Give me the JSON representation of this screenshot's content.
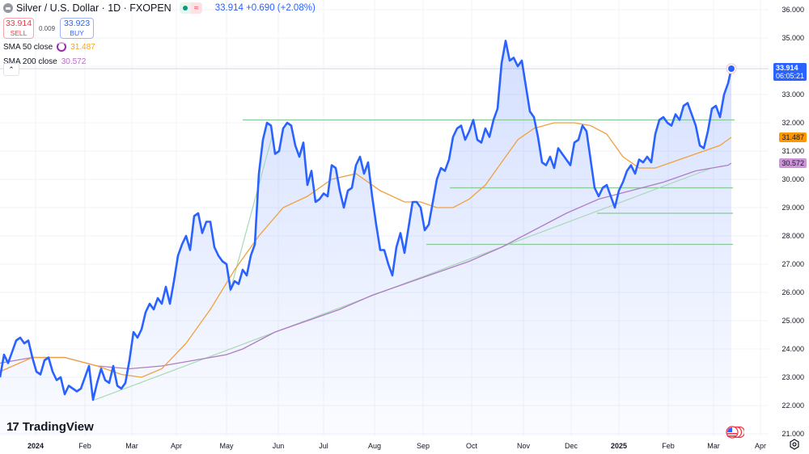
{
  "header": {
    "symbol_title": "Silver / U.S. Dollar · 1D · FXOPEN",
    "market_status": "open",
    "delay_symbol": "≈",
    "last_price": "33.914",
    "change": "+0.690",
    "change_pct": "(+2.08%)"
  },
  "trade": {
    "sell_price": "33.914",
    "sell_label": "SELL",
    "spread": "0.009",
    "buy_price": "33.923",
    "buy_label": "BUY"
  },
  "indicators": [
    {
      "name": "SMA 50 close",
      "value": "31.487",
      "color": "#f5a623"
    },
    {
      "name": "SMA 200 close",
      "value": "30.572",
      "color": "#ba68c8"
    }
  ],
  "collapse_symbol": "^",
  "price_axis": {
    "ticks": [
      "36.000",
      "35.000",
      "33.000",
      "32.000",
      "31.000",
      "30.000",
      "29.000",
      "28.000",
      "27.000",
      "26.000",
      "25.000",
      "24.000",
      "23.000",
      "22.000",
      "21.000"
    ],
    "last_price_tag": {
      "price": "33.914",
      "countdown": "06:05:21",
      "color": "#2962ff"
    },
    "sma50_tag": {
      "value": "31.487",
      "color": "#ff9800"
    },
    "sma200_tag": {
      "value": "30.572",
      "color": "#ce93d8"
    }
  },
  "time_axis": {
    "labels": [
      {
        "text": "2024",
        "bold": true
      },
      {
        "text": "Feb",
        "bold": false
      },
      {
        "text": "Mar",
        "bold": false
      },
      {
        "text": "Apr",
        "bold": false
      },
      {
        "text": "May",
        "bold": false
      },
      {
        "text": "Jun",
        "bold": false
      },
      {
        "text": "Jul",
        "bold": false
      },
      {
        "text": "Aug",
        "bold": false
      },
      {
        "text": "Sep",
        "bold": false
      },
      {
        "text": "Oct",
        "bold": false
      },
      {
        "text": "Nov",
        "bold": false
      },
      {
        "text": "Dec",
        "bold": false
      },
      {
        "text": "2025",
        "bold": true
      },
      {
        "text": "Feb",
        "bold": false
      },
      {
        "text": "Mar",
        "bold": false
      },
      {
        "text": "Apr",
        "bold": false
      }
    ]
  },
  "branding": {
    "logo_mark": "17",
    "logo_text": "TradingView"
  },
  "colors": {
    "price_line": "#2962ff",
    "area_fill": "#2962ff",
    "sma50": "#f0a040",
    "sma200": "#b07cc6",
    "trendlines": "#8bc89a",
    "grid": "#f0f3fa"
  },
  "chart_data": {
    "type": "area",
    "title": "Silver / U.S. Dollar · 1D · FXOPEN",
    "xlabel": "",
    "ylabel": "",
    "ylim": [
      21,
      36
    ],
    "grid": true,
    "legend_position": "top-left",
    "x": [
      "2024-01",
      "2024-02",
      "2024-03",
      "2024-04",
      "2024-05",
      "2024-06",
      "2024-07",
      "2024-08",
      "2024-09",
      "2024-10",
      "2024-11",
      "2024-12",
      "2025-01",
      "2025-02",
      "2025-03"
    ],
    "series": [
      {
        "name": "Silver / U.S. Dollar (close)",
        "points": [
          [
            0,
            23.0
          ],
          [
            5,
            23.8
          ],
          [
            10,
            23.5
          ],
          [
            15,
            23.9
          ],
          [
            20,
            24.3
          ],
          [
            25,
            24.4
          ],
          [
            30,
            24.2
          ],
          [
            35,
            24.3
          ],
          [
            40,
            23.7
          ],
          [
            45,
            23.2
          ],
          [
            50,
            23.1
          ],
          [
            55,
            23.6
          ],
          [
            60,
            23.7
          ],
          [
            65,
            23.2
          ],
          [
            70,
            22.9
          ],
          [
            75,
            23.0
          ],
          [
            80,
            22.4
          ],
          [
            85,
            22.7
          ],
          [
            90,
            22.6
          ],
          [
            95,
            22.5
          ],
          [
            100,
            22.6
          ],
          [
            105,
            23.0
          ],
          [
            110,
            23.4
          ],
          [
            115,
            22.2
          ],
          [
            120,
            22.8
          ],
          [
            125,
            23.3
          ],
          [
            130,
            22.9
          ],
          [
            135,
            22.8
          ],
          [
            140,
            23.4
          ],
          [
            145,
            22.7
          ],
          [
            150,
            22.6
          ],
          [
            155,
            22.8
          ],
          [
            160,
            23.6
          ],
          [
            165,
            24.6
          ],
          [
            170,
            24.4
          ],
          [
            175,
            24.7
          ],
          [
            180,
            25.3
          ],
          [
            185,
            25.6
          ],
          [
            190,
            25.4
          ],
          [
            195,
            25.8
          ],
          [
            200,
            25.6
          ],
          [
            205,
            26.2
          ],
          [
            210,
            25.6
          ],
          [
            215,
            26.4
          ],
          [
            220,
            27.3
          ],
          [
            225,
            27.7
          ],
          [
            230,
            28.0
          ],
          [
            235,
            27.5
          ],
          [
            240,
            28.7
          ],
          [
            245,
            28.8
          ],
          [
            250,
            28.1
          ],
          [
            255,
            28.5
          ],
          [
            260,
            28.5
          ],
          [
            265,
            27.6
          ],
          [
            270,
            27.3
          ],
          [
            275,
            27.1
          ],
          [
            280,
            27.0
          ],
          [
            285,
            26.1
          ],
          [
            290,
            26.4
          ],
          [
            295,
            26.3
          ],
          [
            300,
            26.8
          ],
          [
            305,
            26.6
          ],
          [
            310,
            27.3
          ],
          [
            315,
            27.7
          ],
          [
            320,
            30.2
          ],
          [
            325,
            31.4
          ],
          [
            330,
            32.0
          ],
          [
            335,
            31.9
          ],
          [
            340,
            30.9
          ],
          [
            345,
            31.0
          ],
          [
            350,
            31.8
          ],
          [
            355,
            32.0
          ],
          [
            360,
            31.9
          ],
          [
            365,
            31.2
          ],
          [
            370,
            30.8
          ],
          [
            375,
            31.3
          ],
          [
            380,
            29.8
          ],
          [
            385,
            30.3
          ],
          [
            390,
            29.2
          ],
          [
            395,
            29.3
          ],
          [
            400,
            29.5
          ],
          [
            405,
            29.4
          ],
          [
            410,
            30.5
          ],
          [
            415,
            30.4
          ],
          [
            420,
            29.6
          ],
          [
            425,
            29.0
          ],
          [
            430,
            29.6
          ],
          [
            435,
            29.7
          ],
          [
            440,
            30.5
          ],
          [
            445,
            30.8
          ],
          [
            450,
            30.2
          ],
          [
            455,
            30.6
          ],
          [
            460,
            29.4
          ],
          [
            465,
            28.4
          ],
          [
            470,
            27.5
          ],
          [
            475,
            27.5
          ],
          [
            480,
            27.0
          ],
          [
            485,
            26.6
          ],
          [
            490,
            27.6
          ],
          [
            495,
            28.1
          ],
          [
            500,
            27.4
          ],
          [
            505,
            28.3
          ],
          [
            510,
            29.2
          ],
          [
            515,
            29.2
          ],
          [
            520,
            29.0
          ],
          [
            525,
            28.2
          ],
          [
            530,
            28.4
          ],
          [
            535,
            29.2
          ],
          [
            540,
            30.0
          ],
          [
            545,
            30.4
          ],
          [
            550,
            30.3
          ],
          [
            555,
            30.7
          ],
          [
            560,
            31.5
          ],
          [
            565,
            31.8
          ],
          [
            570,
            31.9
          ],
          [
            575,
            31.4
          ],
          [
            580,
            31.7
          ],
          [
            585,
            32.1
          ],
          [
            590,
            31.4
          ],
          [
            595,
            31.3
          ],
          [
            600,
            31.8
          ],
          [
            605,
            31.5
          ],
          [
            610,
            32.1
          ],
          [
            615,
            32.5
          ],
          [
            620,
            34.1
          ],
          [
            625,
            34.9
          ],
          [
            630,
            34.2
          ],
          [
            635,
            34.3
          ],
          [
            640,
            34.0
          ],
          [
            645,
            34.2
          ],
          [
            650,
            33.3
          ],
          [
            655,
            32.4
          ],
          [
            660,
            32.2
          ],
          [
            665,
            31.5
          ],
          [
            670,
            30.6
          ],
          [
            675,
            30.5
          ],
          [
            680,
            30.8
          ],
          [
            685,
            30.4
          ],
          [
            690,
            31.1
          ],
          [
            695,
            30.9
          ],
          [
            700,
            30.7
          ],
          [
            705,
            30.5
          ],
          [
            710,
            31.3
          ],
          [
            715,
            31.4
          ],
          [
            720,
            31.9
          ],
          [
            725,
            31.7
          ],
          [
            730,
            30.7
          ],
          [
            735,
            29.7
          ],
          [
            740,
            29.4
          ],
          [
            745,
            29.7
          ],
          [
            750,
            29.8
          ],
          [
            755,
            29.4
          ],
          [
            760,
            29.0
          ],
          [
            765,
            29.6
          ],
          [
            770,
            29.9
          ],
          [
            775,
            30.3
          ],
          [
            780,
            30.5
          ],
          [
            785,
            30.2
          ],
          [
            790,
            30.7
          ],
          [
            795,
            30.6
          ],
          [
            800,
            30.8
          ],
          [
            805,
            30.6
          ],
          [
            810,
            31.6
          ],
          [
            815,
            32.1
          ],
          [
            820,
            32.2
          ],
          [
            825,
            32.0
          ],
          [
            830,
            31.9
          ],
          [
            835,
            32.3
          ],
          [
            840,
            32.1
          ],
          [
            845,
            32.6
          ],
          [
            850,
            32.7
          ],
          [
            855,
            32.3
          ],
          [
            860,
            31.9
          ],
          [
            865,
            31.2
          ],
          [
            870,
            31.1
          ],
          [
            875,
            31.7
          ],
          [
            880,
            32.5
          ],
          [
            885,
            32.6
          ],
          [
            890,
            32.2
          ],
          [
            895,
            33.0
          ],
          [
            900,
            33.4
          ],
          [
            904,
            33.914
          ]
        ]
      },
      {
        "name": "SMA 50 close",
        "points": [
          [
            0,
            23.2
          ],
          [
            40,
            23.7
          ],
          [
            80,
            23.7
          ],
          [
            120,
            23.4
          ],
          [
            150,
            23.1
          ],
          [
            175,
            23.0
          ],
          [
            200,
            23.3
          ],
          [
            230,
            24.2
          ],
          [
            260,
            25.4
          ],
          [
            290,
            26.8
          ],
          [
            320,
            28.0
          ],
          [
            350,
            29.0
          ],
          [
            380,
            29.4
          ],
          [
            410,
            30.0
          ],
          [
            440,
            30.2
          ],
          [
            470,
            29.6
          ],
          [
            500,
            29.2
          ],
          [
            520,
            29.2
          ],
          [
            540,
            29.0
          ],
          [
            560,
            29.0
          ],
          [
            580,
            29.3
          ],
          [
            600,
            29.8
          ],
          [
            620,
            30.6
          ],
          [
            640,
            31.4
          ],
          [
            660,
            31.8
          ],
          [
            685,
            32.0
          ],
          [
            710,
            32.0
          ],
          [
            730,
            31.9
          ],
          [
            750,
            31.6
          ],
          [
            770,
            30.8
          ],
          [
            790,
            30.4
          ],
          [
            810,
            30.4
          ],
          [
            830,
            30.6
          ],
          [
            850,
            30.8
          ],
          [
            870,
            31.0
          ],
          [
            890,
            31.2
          ],
          [
            904,
            31.487
          ]
        ]
      },
      {
        "name": "SMA 200 close",
        "points": [
          [
            0,
            23.5
          ],
          [
            40,
            23.7
          ],
          [
            80,
            23.7
          ],
          [
            120,
            23.4
          ],
          [
            160,
            23.3
          ],
          [
            200,
            23.4
          ],
          [
            240,
            23.6
          ],
          [
            280,
            23.8
          ],
          [
            300,
            24.0
          ],
          [
            340,
            24.6
          ],
          [
            380,
            25.0
          ],
          [
            420,
            25.4
          ],
          [
            460,
            25.9
          ],
          [
            500,
            26.3
          ],
          [
            540,
            26.7
          ],
          [
            580,
            27.1
          ],
          [
            620,
            27.6
          ],
          [
            660,
            28.2
          ],
          [
            700,
            28.8
          ],
          [
            740,
            29.3
          ],
          [
            780,
            29.6
          ],
          [
            820,
            29.9
          ],
          [
            860,
            30.3
          ],
          [
            900,
            30.5
          ],
          [
            904,
            30.572
          ]
        ]
      }
    ],
    "horizontal_levels": [
      {
        "price": 32.1,
        "x_from": 300,
        "x_to": 908
      },
      {
        "price": 29.7,
        "x_from": 556,
        "x_to": 906
      },
      {
        "price": 28.8,
        "x_from": 738,
        "x_to": 906
      },
      {
        "price": 27.7,
        "x_from": 527,
        "x_to": 906
      }
    ],
    "trendlines": [
      {
        "from": [
          117,
          22.2
        ],
        "to": [
          880,
          30.4
        ]
      },
      {
        "from": [
          284,
          26.0
        ],
        "to": [
          337,
          31.6
        ]
      }
    ],
    "last_values": {
      "price": 33.914,
      "sma50": 31.487,
      "sma200": 30.572,
      "countdown": "06:05:21"
    }
  }
}
